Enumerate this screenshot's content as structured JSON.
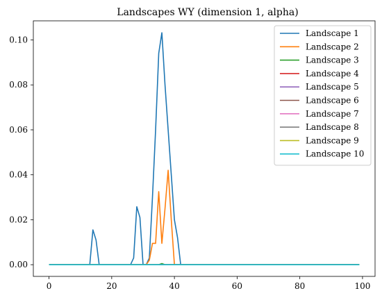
{
  "chart_data": {
    "type": "line",
    "title": "Landscapes WY (dimension 1, alpha)",
    "xlabel": "",
    "ylabel": "",
    "xlim": [
      -5,
      104
    ],
    "ylim": [
      -0.0052,
      0.1085
    ],
    "xticks": [
      0,
      20,
      40,
      60,
      80,
      100
    ],
    "yticks": [
      0.0,
      0.02,
      0.04,
      0.06,
      0.08,
      0.1
    ],
    "xtick_labels": [
      "0",
      "20",
      "40",
      "60",
      "80",
      "100"
    ],
    "ytick_labels": [
      "0.00",
      "0.02",
      "0.04",
      "0.06",
      "0.08",
      "0.10"
    ],
    "grid": false,
    "legend_position": "top-right",
    "series": [
      {
        "name": "Landscape 1",
        "color": "#1f77b4",
        "points": [
          [
            0,
            0
          ],
          [
            13,
            0
          ],
          [
            14,
            0.0155
          ],
          [
            15,
            0.011
          ],
          [
            16,
            0
          ],
          [
            26,
            0
          ],
          [
            27,
            0.003
          ],
          [
            28,
            0.0258
          ],
          [
            29,
            0.021
          ],
          [
            30,
            0
          ],
          [
            31,
            0
          ],
          [
            32,
            0.003
          ],
          [
            33,
            0.03
          ],
          [
            34,
            0.06
          ],
          [
            35,
            0.094
          ],
          [
            36,
            0.1032
          ],
          [
            37,
            0.08
          ],
          [
            38,
            0.06
          ],
          [
            39,
            0.04
          ],
          [
            40,
            0.02
          ],
          [
            41,
            0.012
          ],
          [
            42,
            0
          ],
          [
            99,
            0
          ]
        ]
      },
      {
        "name": "Landscape 2",
        "color": "#ff7f0e",
        "points": [
          [
            0,
            0
          ],
          [
            31,
            0
          ],
          [
            32,
            0.002
          ],
          [
            33,
            0.0095
          ],
          [
            34,
            0.0095
          ],
          [
            35,
            0.0325
          ],
          [
            36,
            0.0095
          ],
          [
            37,
            0.025
          ],
          [
            38,
            0.042
          ],
          [
            39,
            0.02
          ],
          [
            40,
            0
          ],
          [
            99,
            0
          ]
        ]
      },
      {
        "name": "Landscape 3",
        "color": "#2ca02c",
        "points": [
          [
            0,
            0
          ],
          [
            35,
            0
          ],
          [
            36,
            0.0005
          ],
          [
            37,
            0
          ],
          [
            99,
            0
          ]
        ]
      },
      {
        "name": "Landscape 4",
        "color": "#d62728",
        "points": [
          [
            0,
            0
          ],
          [
            99,
            0
          ]
        ]
      },
      {
        "name": "Landscape 5",
        "color": "#9467bd",
        "points": [
          [
            0,
            0
          ],
          [
            99,
            0
          ]
        ]
      },
      {
        "name": "Landscape 6",
        "color": "#8c564b",
        "points": [
          [
            0,
            0
          ],
          [
            99,
            0
          ]
        ]
      },
      {
        "name": "Landscape 7",
        "color": "#e377c2",
        "points": [
          [
            0,
            0
          ],
          [
            99,
            0
          ]
        ]
      },
      {
        "name": "Landscape 8",
        "color": "#7f7f7f",
        "points": [
          [
            0,
            0
          ],
          [
            99,
            0
          ]
        ]
      },
      {
        "name": "Landscape 9",
        "color": "#bcbd22",
        "points": [
          [
            0,
            0
          ],
          [
            99,
            0
          ]
        ]
      },
      {
        "name": "Landscape 10",
        "color": "#17becf",
        "points": [
          [
            0,
            0
          ],
          [
            99,
            0
          ]
        ]
      }
    ]
  }
}
